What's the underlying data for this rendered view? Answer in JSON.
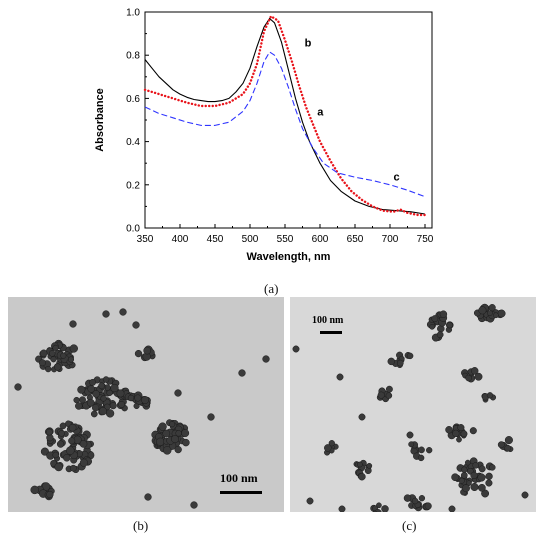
{
  "chart_data": {
    "type": "line",
    "title": "",
    "xlabel": "Wavelength, nm",
    "ylabel": "Absorbance",
    "xlim": [
      350,
      760
    ],
    "ylim": [
      0.0,
      1.0
    ],
    "x_ticks": [
      "350",
      "400",
      "450",
      "500",
      "550",
      "600",
      "650",
      "700",
      "750"
    ],
    "y_ticks": [
      "0.0",
      "0.2",
      "0.4",
      "0.6",
      "0.8",
      "1.0"
    ],
    "grid": false,
    "series": [
      {
        "name": "a",
        "color": "#000000",
        "style": "solid",
        "label_at": [
          596,
          0.52
        ],
        "points": [
          [
            350,
            0.78
          ],
          [
            360,
            0.74
          ],
          [
            370,
            0.7
          ],
          [
            380,
            0.67
          ],
          [
            390,
            0.64
          ],
          [
            400,
            0.62
          ],
          [
            410,
            0.605
          ],
          [
            420,
            0.595
          ],
          [
            430,
            0.59
          ],
          [
            440,
            0.585
          ],
          [
            450,
            0.585
          ],
          [
            460,
            0.59
          ],
          [
            470,
            0.6
          ],
          [
            480,
            0.63
          ],
          [
            490,
            0.67
          ],
          [
            500,
            0.74
          ],
          [
            510,
            0.84
          ],
          [
            520,
            0.93
          ],
          [
            528,
            0.97
          ],
          [
            535,
            0.95
          ],
          [
            545,
            0.86
          ],
          [
            555,
            0.73
          ],
          [
            565,
            0.6
          ],
          [
            575,
            0.49
          ],
          [
            585,
            0.4
          ],
          [
            600,
            0.3
          ],
          [
            615,
            0.22
          ],
          [
            630,
            0.17
          ],
          [
            650,
            0.125
          ],
          [
            670,
            0.1
          ],
          [
            690,
            0.085
          ],
          [
            710,
            0.08
          ],
          [
            730,
            0.075
          ],
          [
            750,
            0.065
          ]
        ]
      },
      {
        "name": "b",
        "color": "#e8141b",
        "style": "dotted",
        "label_at": [
          578,
          0.84
        ],
        "points": [
          [
            350,
            0.64
          ],
          [
            370,
            0.62
          ],
          [
            390,
            0.6
          ],
          [
            410,
            0.58
          ],
          [
            430,
            0.565
          ],
          [
            450,
            0.565
          ],
          [
            470,
            0.58
          ],
          [
            490,
            0.62
          ],
          [
            500,
            0.67
          ],
          [
            510,
            0.76
          ],
          [
            520,
            0.91
          ],
          [
            530,
            0.98
          ],
          [
            540,
            0.96
          ],
          [
            550,
            0.87
          ],
          [
            560,
            0.77
          ],
          [
            570,
            0.66
          ],
          [
            580,
            0.56
          ],
          [
            590,
            0.48
          ],
          [
            600,
            0.4
          ],
          [
            615,
            0.31
          ],
          [
            630,
            0.23
          ],
          [
            645,
            0.17
          ],
          [
            660,
            0.13
          ],
          [
            675,
            0.1
          ],
          [
            690,
            0.08
          ],
          [
            705,
            0.075
          ],
          [
            715,
            0.085
          ],
          [
            725,
            0.07
          ],
          [
            740,
            0.06
          ],
          [
            750,
            0.06
          ]
        ]
      },
      {
        "name": "c",
        "color": "#2f35ff",
        "style": "dashed",
        "label_at": [
          705,
          0.22
        ],
        "points": [
          [
            350,
            0.56
          ],
          [
            370,
            0.53
          ],
          [
            390,
            0.51
          ],
          [
            410,
            0.49
          ],
          [
            430,
            0.475
          ],
          [
            450,
            0.475
          ],
          [
            470,
            0.49
          ],
          [
            490,
            0.54
          ],
          [
            500,
            0.59
          ],
          [
            510,
            0.67
          ],
          [
            520,
            0.77
          ],
          [
            528,
            0.815
          ],
          [
            535,
            0.8
          ],
          [
            545,
            0.74
          ],
          [
            555,
            0.65
          ],
          [
            565,
            0.55
          ],
          [
            575,
            0.46
          ],
          [
            590,
            0.37
          ],
          [
            605,
            0.3
          ],
          [
            625,
            0.255
          ],
          [
            650,
            0.235
          ],
          [
            675,
            0.22
          ],
          [
            700,
            0.2
          ],
          [
            725,
            0.175
          ],
          [
            750,
            0.145
          ]
        ]
      }
    ]
  },
  "panel_labels": {
    "a": "(a)",
    "b": "(b)",
    "c": "(c)"
  },
  "micrographs": {
    "b": {
      "scale_label": "100 nm"
    },
    "c": {
      "scale_label": "100 nm"
    }
  }
}
